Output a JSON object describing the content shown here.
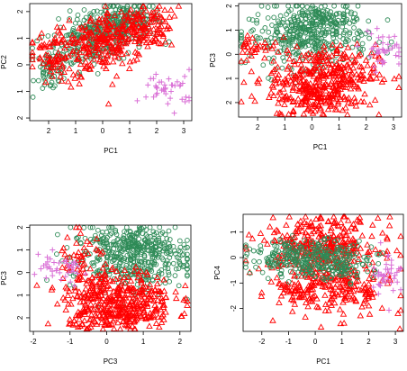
{
  "colors": {
    "green": "#2e8b57",
    "red": "#ff0000",
    "violet": "#da70d6",
    "axis": "#000000"
  },
  "chart_data": [
    {
      "type": "scatter",
      "xlabel": "PC1",
      "ylabel": "PC2",
      "xlim": [
        -2.7,
        3.3
      ],
      "ylim": [
        -2.1,
        2.3
      ],
      "xticks": [
        -2,
        -1,
        0,
        1,
        2,
        3
      ],
      "yticks": [
        -2,
        -1,
        0,
        1,
        2
      ],
      "xtick_labels": [
        "2",
        "1",
        "0",
        "1",
        "2",
        "3"
      ],
      "ytick_labels": [
        "2",
        "1",
        "0",
        "1",
        "2"
      ],
      "grid": false,
      "series": [
        {
          "marker": "circle",
          "color": "#2e8b57",
          "clusters": [
            {
              "cx": -0.3,
              "cy": 1.0,
              "sx": 0.9,
              "sy": 0.5,
              "rot": 0.3,
              "n": 260
            },
            {
              "cx": 0.8,
              "cy": 1.6,
              "sx": 0.7,
              "sy": 0.35,
              "rot": 0.1,
              "n": 160
            },
            {
              "cx": -1.9,
              "cy": -0.2,
              "sx": 0.3,
              "sy": 0.4,
              "rot": 0,
              "n": 60
            }
          ]
        },
        {
          "marker": "triangle",
          "color": "#ff0000",
          "clusters": [
            {
              "cx": 0.0,
              "cy": 0.8,
              "sx": 1.0,
              "sy": 0.55,
              "rot": 0.35,
              "n": 240
            },
            {
              "cx": 1.3,
              "cy": 1.4,
              "sx": 0.6,
              "sy": 0.4,
              "rot": 0.2,
              "n": 110
            },
            {
              "cx": -1.8,
              "cy": 0.3,
              "sx": 0.4,
              "sy": 0.5,
              "rot": 0.2,
              "n": 60
            }
          ]
        },
        {
          "marker": "plus",
          "color": "#da70d6",
          "clusters": [
            {
              "cx": 2.4,
              "cy": -0.9,
              "sx": 0.5,
              "sy": 0.35,
              "rot": 0,
              "n": 40
            }
          ]
        }
      ]
    },
    {
      "type": "scatter",
      "xlabel": "PC1",
      "ylabel": "PC3",
      "xlim": [
        -2.7,
        3.3
      ],
      "ylim": [
        -2.6,
        2.1
      ],
      "xticks": [
        -2,
        -1,
        0,
        1,
        2,
        3
      ],
      "yticks": [
        -2,
        -1,
        0,
        1,
        2
      ],
      "xtick_labels": [
        "2",
        "1",
        "0",
        "1",
        "2",
        "3"
      ],
      "ytick_labels": [
        "2",
        "1",
        "0",
        "1",
        "2"
      ],
      "grid": false,
      "series": [
        {
          "marker": "circle",
          "color": "#2e8b57",
          "clusters": [
            {
              "cx": -0.1,
              "cy": 0.7,
              "sx": 1.1,
              "sy": 0.6,
              "rot": 0,
              "n": 360
            },
            {
              "cx": 0.3,
              "cy": 1.5,
              "sx": 0.6,
              "sy": 0.3,
              "rot": 0,
              "n": 100
            }
          ]
        },
        {
          "marker": "triangle",
          "color": "#ff0000",
          "clusters": [
            {
              "cx": 0.4,
              "cy": -0.9,
              "sx": 1.0,
              "sy": 0.6,
              "rot": 0.05,
              "n": 330
            },
            {
              "cx": 0.2,
              "cy": -1.9,
              "sx": 0.8,
              "sy": 0.35,
              "rot": 0,
              "n": 120
            },
            {
              "cx": -2.0,
              "cy": 0.4,
              "sx": 0.4,
              "sy": 0.3,
              "rot": 0,
              "n": 30
            }
          ]
        },
        {
          "marker": "plus",
          "color": "#da70d6",
          "clusters": [
            {
              "cx": 2.6,
              "cy": 0.2,
              "sx": 0.4,
              "sy": 0.35,
              "rot": 0,
              "n": 40
            }
          ]
        }
      ]
    },
    {
      "type": "scatter",
      "xlabel": "PC3",
      "ylabel": "PC3",
      "xlim": [
        -2.1,
        2.3
      ],
      "ylim": [
        -2.6,
        2.1
      ],
      "xticks": [
        -2,
        -1,
        0,
        1,
        2
      ],
      "yticks": [
        -2,
        -1,
        0,
        1,
        2
      ],
      "xtick_labels": [
        "-2",
        "-1",
        "0",
        "1",
        "2"
      ],
      "ytick_labels": [
        "2",
        "1",
        "0",
        "1",
        "2"
      ],
      "grid": false,
      "series": [
        {
          "marker": "circle",
          "color": "#2e8b57",
          "clusters": [
            {
              "cx": 0.6,
              "cy": 0.6,
              "sx": 0.8,
              "sy": 0.7,
              "rot": 0,
              "n": 380
            },
            {
              "cx": 0.8,
              "cy": 1.4,
              "sx": 0.6,
              "sy": 0.35,
              "rot": 0,
              "n": 100
            }
          ]
        },
        {
          "marker": "triangle",
          "color": "#ff0000",
          "clusters": [
            {
              "cx": 0.3,
              "cy": -1.1,
              "sx": 0.75,
              "sy": 0.6,
              "rot": 0,
              "n": 330
            },
            {
              "cx": 0.4,
              "cy": -2.0,
              "sx": 0.7,
              "sy": 0.3,
              "rot": 0,
              "n": 110
            },
            {
              "cx": -0.6,
              "cy": 0.3,
              "sx": 0.35,
              "sy": 0.8,
              "rot": 0,
              "n": 50
            }
          ]
        },
        {
          "marker": "plus",
          "color": "#da70d6",
          "clusters": [
            {
              "cx": -1.3,
              "cy": 0.1,
              "sx": 0.45,
              "sy": 0.35,
              "rot": 0,
              "n": 40
            }
          ]
        }
      ]
    },
    {
      "type": "scatter",
      "xlabel": "PC1",
      "ylabel": "PC4",
      "xlim": [
        -2.7,
        3.3
      ],
      "ylim": [
        -2.9,
        1.7
      ],
      "xticks": [
        -2,
        -1,
        0,
        1,
        2,
        3
      ],
      "yticks": [
        -2,
        -1,
        0,
        1
      ],
      "xtick_labels": [
        "-2",
        "-1",
        "0",
        "1",
        "2",
        "3"
      ],
      "ytick_labels": [
        "-2",
        "-1",
        "0",
        "1"
      ],
      "grid": false,
      "series": [
        {
          "marker": "triangle",
          "color": "#ff0000",
          "clusters": [
            {
              "cx": 0.2,
              "cy": 0.5,
              "sx": 1.1,
              "sy": 0.55,
              "rot": 0,
              "n": 320
            },
            {
              "cx": 0.8,
              "cy": -1.1,
              "sx": 1.0,
              "sy": 0.6,
              "rot": -0.1,
              "n": 220
            },
            {
              "cx": -0.8,
              "cy": -1.5,
              "sx": 0.4,
              "sy": 0.4,
              "rot": 0,
              "n": 40
            }
          ]
        },
        {
          "marker": "circle",
          "color": "#2e8b57",
          "clusters": [
            {
              "cx": -0.3,
              "cy": 0.0,
              "sx": 1.1,
              "sy": 0.35,
              "rot": 0,
              "n": 260
            },
            {
              "cx": 0.9,
              "cy": -0.3,
              "sx": 0.6,
              "sy": 0.3,
              "rot": 0,
              "n": 80
            }
          ]
        },
        {
          "marker": "plus",
          "color": "#da70d6",
          "clusters": [
            {
              "cx": 2.7,
              "cy": -0.6,
              "sx": 0.3,
              "sy": 0.5,
              "rot": 0,
              "n": 40
            }
          ]
        }
      ]
    }
  ]
}
